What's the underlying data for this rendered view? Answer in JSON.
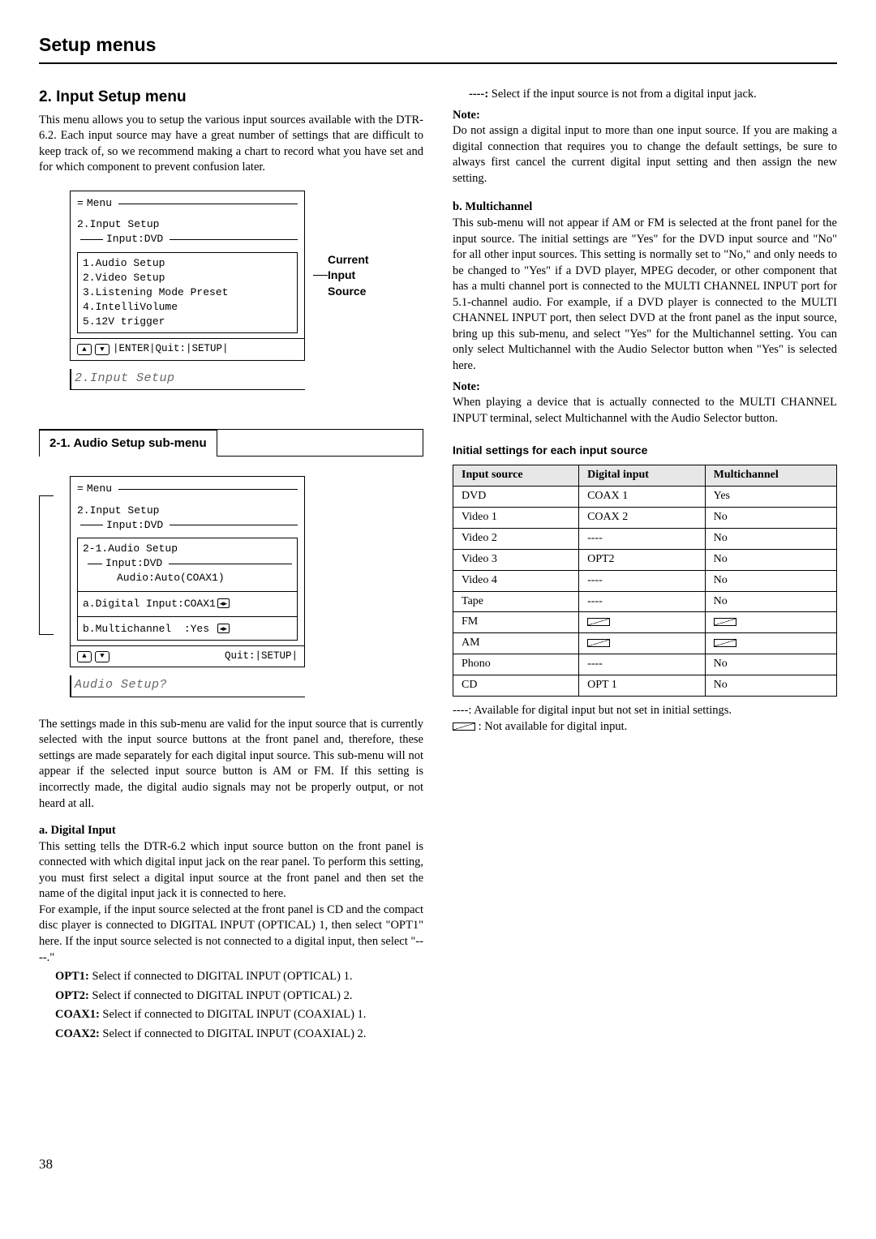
{
  "page": {
    "title": "Setup menus",
    "number": "38"
  },
  "section": {
    "title": "2. Input Setup menu",
    "intro": "This menu allows you to setup the various input sources available with the DTR-6.2. Each input source may have a great number of settings that are difficult to keep track of, so we recommend making a chart to record what you have set and for which component to prevent confusion later."
  },
  "lcd_main": {
    "menu_label": "Menu",
    "title1": "2.Input Setup",
    "title2": "Input:DVD",
    "items": [
      "1.Audio Setup",
      "2.Video Setup",
      "3.Listening Mode Preset",
      "4.IntelliVolume",
      "5.12V trigger"
    ],
    "footer": "|ENTER|Quit:|SETUP|",
    "side_label": "Current Input Source",
    "display": "2.Input Setup"
  },
  "submenu": {
    "title": "2-1.  Audio Setup sub-menu"
  },
  "lcd_sub": {
    "menu_label": "Menu",
    "title1": "2.Input Setup",
    "title2": "Input:DVD",
    "sub_title1": "2-1.Audio Setup",
    "sub_title2": "Input:DVD",
    "sub_title3": "Audio:Auto(COAX1)",
    "line_a": "a.Digital Input:COAX1",
    "line_b": "b.Multichannel  :Yes",
    "footer": "Quit:|SETUP|",
    "display": "Audio Setup?"
  },
  "audio_setup": {
    "para1": "The settings made in this sub-menu are valid for the input source that is currently selected with the input source buttons at the front panel and, therefore, these settings are made separately for each digital input source. This sub-menu will not appear if the selected input source button is AM or FM. If this setting is incorrectly made, the digital audio signals may not be properly output, or not heard at all.",
    "a_head": "a. Digital Input",
    "a_body1": "This setting tells the DTR-6.2 which input source button on the front panel is connected with which digital input jack on the rear panel. To perform this setting, you must first select a digital input source at the front panel and then set the name of the digital input jack it is connected to here.",
    "a_body2": "For example, if the input source selected at the front panel is CD and the compact disc player is connected to DIGITAL INPUT (OPTICAL) 1, then select \"OPT1\" here. If the input source selected is not connected to a digital input, then select \"----.\"",
    "opts": {
      "opt1": {
        "k": "OPT1:",
        "v": " Select if connected to DIGITAL INPUT (OPTICAL) 1."
      },
      "opt2": {
        "k": "OPT2:",
        "v": " Select if connected to DIGITAL INPUT (OPTICAL) 2."
      },
      "coax1": {
        "k": "COAX1:",
        "v": " Select if connected to DIGITAL INPUT (COAXIAL) 1."
      },
      "coax2": {
        "k": "COAX2:",
        "v": " Select if connected to DIGITAL INPUT (COAXIAL) 2."
      },
      "dash": {
        "k": "----:",
        "v": " Select if the input source is not from a digital input jack."
      }
    }
  },
  "right_col": {
    "note_head": "Note:",
    "note_body": "Do not assign a digital input to more than one input source. If you are making a digital connection that requires you to change the default settings, be sure to always first cancel the current digital input setting and then assign the new setting.",
    "b_head": "b. Multichannel",
    "b_body": "This sub-menu will not appear if AM or FM is selected at the front panel for the input source. The initial settings are \"Yes\" for the DVD input source and \"No\" for all other input sources. This setting is normally set to \"No,\" and only needs to be changed to \"Yes\" if a DVD player, MPEG decoder, or other component that has a multi channel port is connected to the MULTI CHANNEL INPUT port for 5.1-channel audio. For example, if a DVD player is connected to the MULTI CHANNEL INPUT port, then select DVD at the front panel as the input source, bring up this sub-menu, and select \"Yes\" for the Multichannel setting. You can only select Multichannel with the Audio Selector button when \"Yes\" is selected here.",
    "note2_head": "Note:",
    "note2_body": "When playing a device that is actually connected to the MULTI CHANNEL INPUT terminal, select Multichannel with the Audio Selector button."
  },
  "table": {
    "title": "Initial settings for each input source",
    "headers": [
      "Input source",
      "Digital input",
      "Multichannel"
    ],
    "rows": [
      {
        "src": "DVD",
        "dig": "COAX 1",
        "mc": "Yes"
      },
      {
        "src": "Video 1",
        "dig": "COAX 2",
        "mc": "No"
      },
      {
        "src": "Video 2",
        "dig": "----",
        "mc": "No"
      },
      {
        "src": "Video 3",
        "dig": "OPT2",
        "mc": "No"
      },
      {
        "src": "Video 4",
        "dig": "----",
        "mc": "No"
      },
      {
        "src": "Tape",
        "dig": "----",
        "mc": "No"
      },
      {
        "src": "FM",
        "dig": "NA",
        "mc": "NA"
      },
      {
        "src": "AM",
        "dig": "NA",
        "mc": "NA"
      },
      {
        "src": "Phono",
        "dig": "----",
        "mc": "No"
      },
      {
        "src": "CD",
        "dig": "OPT 1",
        "mc": "No"
      }
    ],
    "legend1": "----: Available for digital input but not set in initial settings.",
    "legend2": " : Not available for digital input."
  }
}
